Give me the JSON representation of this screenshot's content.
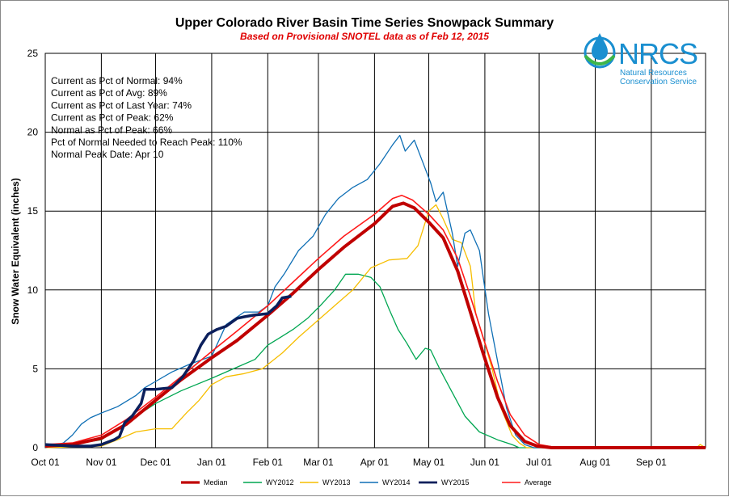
{
  "chart_data": {
    "type": "line",
    "title": "Upper Colorado River Basin Time Series Snowpack Summary",
    "subtitle": "Based on Provisional SNOTEL data as of Feb 12, 2015",
    "xlabel": "",
    "ylabel": "Snow Water Equivalent (inches)",
    "ylim": [
      0,
      25
    ],
    "yticks": [
      "0",
      "5",
      "10",
      "15",
      "20",
      "25"
    ],
    "xticks": [
      "Oct 01",
      "Nov 01",
      "Dec 01",
      "Jan 01",
      "Feb 01",
      "Mar 01",
      "Apr 01",
      "May 01",
      "Jun 01",
      "Jul 01",
      "Aug 01",
      "Sep 01"
    ],
    "x_unit": "days since Oct 01",
    "xlim": [
      0,
      365
    ],
    "grid": true,
    "legend_position": "bottom",
    "stats": [
      "Current  as Pct of Normal: 94%",
      "Current  as Pct of Avg: 89%",
      "Current  as Pct of Last Year: 74%",
      "Current  as Pct of Peak: 62%",
      "Normal  as Pct of Peak: 66%",
      "Pct of Normal Needed  to Reach Peak: 110%",
      "Normal  Peak Date: Apr 10"
    ],
    "series": [
      {
        "name": "Median",
        "color": "#c00000",
        "width": 4,
        "points": [
          [
            0,
            0.1
          ],
          [
            15,
            0.2
          ],
          [
            31,
            0.6
          ],
          [
            45,
            1.5
          ],
          [
            61,
            3.0
          ],
          [
            75,
            4.3
          ],
          [
            92,
            5.7
          ],
          [
            106,
            6.8
          ],
          [
            123,
            8.4
          ],
          [
            137,
            9.8
          ],
          [
            151,
            11.3
          ],
          [
            165,
            12.7
          ],
          [
            182,
            14.2
          ],
          [
            192,
            15.3
          ],
          [
            198,
            15.5
          ],
          [
            204,
            15.2
          ],
          [
            212,
            14.3
          ],
          [
            220,
            13.3
          ],
          [
            228,
            11.2
          ],
          [
            235,
            8.6
          ],
          [
            242,
            6.0
          ],
          [
            250,
            3.2
          ],
          [
            257,
            1.4
          ],
          [
            265,
            0.4
          ],
          [
            272,
            0.1
          ],
          [
            280,
            0.0
          ],
          [
            365,
            0.0
          ]
        ]
      },
      {
        "name": "WY2012",
        "color": "#00a651",
        "width": 1.3,
        "points": [
          [
            0,
            0.1
          ],
          [
            20,
            0.3
          ],
          [
            31,
            0.5
          ],
          [
            45,
            1.6
          ],
          [
            61,
            2.8
          ],
          [
            75,
            3.6
          ],
          [
            92,
            4.4
          ],
          [
            106,
            5.1
          ],
          [
            116,
            5.6
          ],
          [
            123,
            6.5
          ],
          [
            130,
            7.0
          ],
          [
            137,
            7.5
          ],
          [
            145,
            8.2
          ],
          [
            152,
            9.0
          ],
          [
            160,
            10.0
          ],
          [
            166,
            11.0
          ],
          [
            173,
            11.0
          ],
          [
            180,
            10.8
          ],
          [
            185,
            10.2
          ],
          [
            190,
            8.8
          ],
          [
            195,
            7.5
          ],
          [
            200,
            6.6
          ],
          [
            205,
            5.6
          ],
          [
            210,
            6.3
          ],
          [
            213,
            6.2
          ],
          [
            218,
            5.0
          ],
          [
            225,
            3.5
          ],
          [
            232,
            2.0
          ],
          [
            240,
            1.0
          ],
          [
            250,
            0.5
          ],
          [
            258,
            0.2
          ],
          [
            262,
            0.0
          ],
          [
            365,
            0.0
          ]
        ]
      },
      {
        "name": "WY2013",
        "color": "#f6be00",
        "width": 1.3,
        "points": [
          [
            0,
            0.0
          ],
          [
            31,
            0.1
          ],
          [
            40,
            0.5
          ],
          [
            50,
            1.0
          ],
          [
            61,
            1.2
          ],
          [
            70,
            1.2
          ],
          [
            78,
            2.2
          ],
          [
            85,
            3.0
          ],
          [
            92,
            4.0
          ],
          [
            100,
            4.5
          ],
          [
            110,
            4.7
          ],
          [
            120,
            5.0
          ],
          [
            131,
            6.0
          ],
          [
            140,
            7.0
          ],
          [
            150,
            8.0
          ],
          [
            160,
            9.0
          ],
          [
            170,
            10.0
          ],
          [
            180,
            11.4
          ],
          [
            190,
            11.9
          ],
          [
            200,
            12.0
          ],
          [
            206,
            12.8
          ],
          [
            212,
            15.0
          ],
          [
            216,
            15.4
          ],
          [
            220,
            14.5
          ],
          [
            225,
            13.2
          ],
          [
            230,
            13.0
          ],
          [
            235,
            11.5
          ],
          [
            238,
            8.5
          ],
          [
            242,
            7.0
          ],
          [
            247,
            5.0
          ],
          [
            252,
            2.5
          ],
          [
            258,
            0.8
          ],
          [
            262,
            0.3
          ],
          [
            266,
            0.0
          ],
          [
            360,
            0.0
          ],
          [
            362,
            0.2
          ],
          [
            365,
            0.0
          ]
        ]
      },
      {
        "name": "WY2014",
        "color": "#0f6fb5",
        "width": 1.3,
        "points": [
          [
            0,
            0.0
          ],
          [
            10,
            0.3
          ],
          [
            15,
            0.8
          ],
          [
            20,
            1.5
          ],
          [
            25,
            1.9
          ],
          [
            31,
            2.2
          ],
          [
            40,
            2.6
          ],
          [
            50,
            3.3
          ],
          [
            55,
            3.8
          ],
          [
            61,
            4.2
          ],
          [
            70,
            4.8
          ],
          [
            80,
            5.3
          ],
          [
            92,
            5.8
          ],
          [
            100,
            7.8
          ],
          [
            110,
            8.6
          ],
          [
            118,
            8.6
          ],
          [
            123,
            9.0
          ],
          [
            127,
            10.2
          ],
          [
            132,
            11.0
          ],
          [
            140,
            12.5
          ],
          [
            148,
            13.4
          ],
          [
            155,
            14.8
          ],
          [
            162,
            15.8
          ],
          [
            170,
            16.5
          ],
          [
            178,
            17.0
          ],
          [
            185,
            18.0
          ],
          [
            192,
            19.2
          ],
          [
            196,
            19.8
          ],
          [
            199,
            18.8
          ],
          [
            204,
            19.5
          ],
          [
            208,
            18.3
          ],
          [
            213,
            16.8
          ],
          [
            216,
            15.6
          ],
          [
            220,
            16.2
          ],
          [
            225,
            13.6
          ],
          [
            228,
            11.5
          ],
          [
            232,
            13.6
          ],
          [
            235,
            13.8
          ],
          [
            240,
            12.5
          ],
          [
            245,
            8.5
          ],
          [
            250,
            5.5
          ],
          [
            255,
            2.5
          ],
          [
            260,
            0.8
          ],
          [
            265,
            0.2
          ],
          [
            270,
            0.0
          ],
          [
            365,
            0.0
          ]
        ]
      },
      {
        "name": "WY2015",
        "color": "#0b1f5c",
        "width": 3.5,
        "points": [
          [
            0,
            0.2
          ],
          [
            15,
            0.1
          ],
          [
            25,
            0.1
          ],
          [
            31,
            0.2
          ],
          [
            38,
            0.5
          ],
          [
            41,
            0.7
          ],
          [
            44,
            1.6
          ],
          [
            48,
            2.0
          ],
          [
            53,
            2.8
          ],
          [
            55,
            3.7
          ],
          [
            61,
            3.7
          ],
          [
            70,
            3.8
          ],
          [
            76,
            4.5
          ],
          [
            82,
            5.5
          ],
          [
            86,
            6.5
          ],
          [
            90,
            7.2
          ],
          [
            95,
            7.5
          ],
          [
            100,
            7.7
          ],
          [
            106,
            8.2
          ],
          [
            110,
            8.3
          ],
          [
            115,
            8.4
          ],
          [
            123,
            8.5
          ],
          [
            128,
            9.0
          ],
          [
            131,
            9.5
          ],
          [
            136,
            9.6
          ]
        ]
      },
      {
        "name": "Average",
        "color": "#ff1a1a",
        "width": 1.6,
        "points": [
          [
            0,
            0.2
          ],
          [
            15,
            0.3
          ],
          [
            31,
            0.8
          ],
          [
            45,
            1.8
          ],
          [
            61,
            3.2
          ],
          [
            75,
            4.5
          ],
          [
            92,
            6.1
          ],
          [
            106,
            7.4
          ],
          [
            123,
            9.0
          ],
          [
            137,
            10.5
          ],
          [
            151,
            12.0
          ],
          [
            165,
            13.4
          ],
          [
            182,
            14.8
          ],
          [
            192,
            15.8
          ],
          [
            197,
            16.0
          ],
          [
            203,
            15.7
          ],
          [
            212,
            14.8
          ],
          [
            220,
            13.8
          ],
          [
            228,
            12.0
          ],
          [
            235,
            9.6
          ],
          [
            242,
            7.0
          ],
          [
            250,
            4.2
          ],
          [
            257,
            2.1
          ],
          [
            265,
            0.8
          ],
          [
            273,
            0.2
          ],
          [
            283,
            0.0
          ],
          [
            365,
            0.0
          ]
        ]
      }
    ]
  },
  "logo": {
    "text": "NRCS",
    "line1": "Natural Resources",
    "line2": "Conservation Service",
    "color": "#1a8fd0"
  }
}
